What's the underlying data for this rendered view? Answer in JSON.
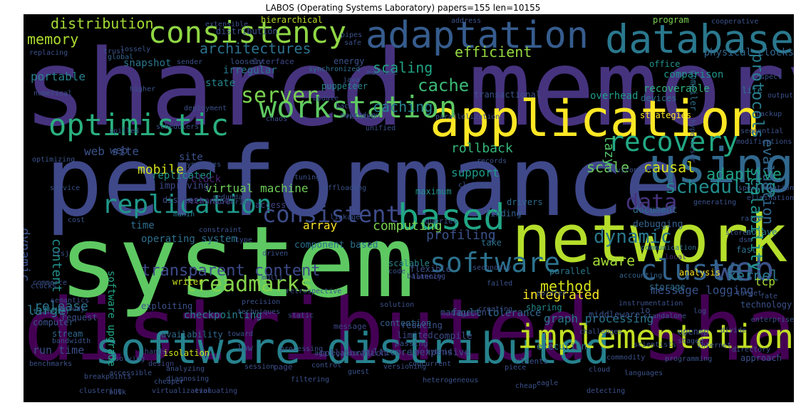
{
  "title": "LABOS (Operating Systems Laboratory) papers=155 len=10155",
  "words": [
    {
      "text": "shared memory",
      "color": "#46337e"
    },
    {
      "text": "performance",
      "color": "#3f4889"
    },
    {
      "text": "distributed shared",
      "color": "#440154"
    },
    {
      "text": "system",
      "color": "#5ec962"
    },
    {
      "text": "network",
      "color": "#b5de2b"
    },
    {
      "text": "application",
      "color": "#fde725"
    },
    {
      "text": "database",
      "color": "#2a788e"
    },
    {
      "text": "adaptation",
      "color": "#365c8d"
    },
    {
      "text": "consistency",
      "color": "#8fd744"
    },
    {
      "text": "using",
      "color": "#31688e"
    },
    {
      "text": "software distributed",
      "color": "#26828e"
    },
    {
      "text": "implementation",
      "color": "#c2df23"
    },
    {
      "text": "workstation",
      "color": "#5ec962"
    },
    {
      "text": "optimistic",
      "color": "#2ab07f"
    },
    {
      "text": "based",
      "color": "#21a685"
    },
    {
      "text": "server",
      "color": "#7ad151"
    },
    {
      "text": "web",
      "color": "#3b528b"
    },
    {
      "text": "cluster",
      "color": "#33638d"
    },
    {
      "text": "replication",
      "color": "#1f988b"
    },
    {
      "text": "recovery",
      "color": "#22a884"
    },
    {
      "text": "consistent",
      "color": "#3e4c8a"
    },
    {
      "text": "software",
      "color": "#2c728e"
    },
    {
      "text": "treadmarks",
      "color": "#84d44b"
    },
    {
      "text": "data",
      "color": "#46327e"
    },
    {
      "text": "scheduling",
      "color": "#228c8d"
    },
    {
      "text": "distribution",
      "color": "#a5db36"
    },
    {
      "text": "memory",
      "color": "#addc30"
    },
    {
      "text": "architectures",
      "color": "#2c728e"
    },
    {
      "text": "efficient",
      "color": "#95d840"
    },
    {
      "text": "protocols",
      "color": "#287d8e"
    },
    {
      "text": "cache",
      "color": "#3bbb75"
    },
    {
      "text": "scaling",
      "color": "#20a386"
    },
    {
      "text": "evaluation",
      "color": "#31688e"
    },
    {
      "text": "adaptive",
      "color": "#1fa187"
    },
    {
      "text": "caching",
      "color": "#26828e"
    },
    {
      "text": "lazy",
      "color": "#52c569"
    },
    {
      "text": "causal",
      "color": "#d8e219"
    },
    {
      "text": "scalability",
      "color": "#1f968b"
    },
    {
      "text": "rollback",
      "color": "#35b779"
    },
    {
      "text": "mobile",
      "color": "#d0e11c"
    },
    {
      "text": "web site",
      "color": "#3b528b"
    },
    {
      "text": "content",
      "color": "#21918c"
    },
    {
      "text": "dynamic",
      "color": "#3a548c"
    },
    {
      "text": "dynamic",
      "color": "#2a788e"
    },
    {
      "text": "scale",
      "color": "#6ccd5a"
    },
    {
      "text": "support",
      "color": "#1e9b8a"
    },
    {
      "text": "computing",
      "color": "#7ad151"
    },
    {
      "text": "profiling",
      "color": "#3b528b"
    },
    {
      "text": "kernel",
      "color": "#2a788e"
    },
    {
      "text": "transparent content",
      "color": "#3e4a89"
    },
    {
      "text": "aware",
      "color": "#a2da37"
    },
    {
      "text": "method",
      "color": "#d5e21a"
    },
    {
      "text": "integrated",
      "color": "#fde725"
    },
    {
      "text": "release",
      "color": "#2c738e"
    },
    {
      "text": "graph processing",
      "color": "#2a768e"
    },
    {
      "text": "message logging",
      "color": "#3a548c"
    },
    {
      "text": "fault tolerance",
      "color": "#31688e"
    },
    {
      "text": "checkpointing",
      "color": "#277f8e"
    },
    {
      "text": "run time",
      "color": "#3d4d8a"
    },
    {
      "text": "operating system",
      "color": "#2d708e"
    },
    {
      "text": "component based",
      "color": "#2c718e"
    },
    {
      "text": "software upgrade",
      "color": "#22a884"
    },
    {
      "text": "virtual machine",
      "color": "#6ece58"
    },
    {
      "text": "physical clocks",
      "color": "#31688e"
    },
    {
      "text": "replicated",
      "color": "#21918c"
    },
    {
      "text": "improving",
      "color": "#3e4a89"
    },
    {
      "text": "time",
      "color": "#2e6e8e"
    },
    {
      "text": "irregular",
      "color": "#2a778e"
    },
    {
      "text": "state",
      "color": "#24868e"
    },
    {
      "text": "portable",
      "color": "#27808e"
    },
    {
      "text": "snapshot",
      "color": "#2a768e"
    },
    {
      "text": "overhead",
      "color": "#1e9c89"
    },
    {
      "text": "comparison",
      "color": "#1f948c"
    },
    {
      "text": "recoverable",
      "color": "#2db27d"
    },
    {
      "text": "energy",
      "color": "#3b528b"
    },
    {
      "text": "puppeteer",
      "color": "#25848e"
    },
    {
      "text": "office",
      "color": "#20928c"
    },
    {
      "text": "program",
      "color": "#7ad151"
    },
    {
      "text": "hierarchical",
      "color": "#b8de29"
    },
    {
      "text": "large",
      "color": "#2a788e"
    },
    {
      "text": "analysis",
      "color": "#fde725"
    },
    {
      "text": "storage",
      "color": "#2e6e8e"
    },
    {
      "text": "tcp",
      "color": "#a8db34"
    },
    {
      "text": "diskless",
      "color": "#3e4989"
    },
    {
      "text": "clock",
      "color": "#482475"
    },
    {
      "text": "mechanism",
      "color": "#46307e"
    },
    {
      "text": "document",
      "color": "#2e6d8e"
    },
    {
      "text": "debugging",
      "color": "#33638d"
    },
    {
      "text": "finding",
      "color": "#34618d"
    },
    {
      "text": "drivers",
      "color": "#2f6b8e"
    },
    {
      "text": "array",
      "color": "#fde725"
    },
    {
      "text": "access",
      "color": "#414487"
    },
    {
      "text": "parallel",
      "color": "#2a778e"
    },
    {
      "text": "scalable",
      "color": "#25858e"
    },
    {
      "text": "flexible",
      "color": "#3b528b"
    },
    {
      "text": "sharing",
      "color": "#24878e"
    },
    {
      "text": "exploiting",
      "color": "#3b528b"
    },
    {
      "text": "management",
      "color": "#3a548c"
    },
    {
      "text": "limited",
      "color": "#3f4788"
    },
    {
      "text": "compile",
      "color": "#3e4c8a"
    },
    {
      "text": "execution",
      "color": "#2a778e"
    },
    {
      "text": "multicore",
      "color": "#39558c"
    },
    {
      "text": "inexpensive",
      "color": "#3e4a89"
    },
    {
      "text": "collaboration",
      "color": "#443983"
    },
    {
      "text": "approach",
      "color": "#3b528b"
    },
    {
      "text": "distribution",
      "color": "#3b528b"
    },
    {
      "text": "lite",
      "color": "#2a788e"
    },
    {
      "text": "devices",
      "color": "#2c728e"
    },
    {
      "text": "compiler",
      "color": "#2e6e8e"
    },
    {
      "text": "strategies",
      "color": "#fde725"
    },
    {
      "text": "maximum",
      "color": "#21918c"
    },
    {
      "text": "queries",
      "color": "#3d4e8a"
    },
    {
      "text": "isolation",
      "color": "#d0e11c"
    },
    {
      "text": "java",
      "color": "#3b528b"
    },
    {
      "text": "web",
      "color": "#3b528b"
    },
    {
      "text": "low",
      "color": "#3a548c"
    },
    {
      "text": "communication",
      "color": "#2e6e8e"
    },
    {
      "text": "local",
      "color": "#472c7a"
    },
    {
      "text": "take",
      "color": "#2c718e"
    },
    {
      "text": "site",
      "color": "#3b528b"
    },
    {
      "text": "transfer",
      "color": "#2a788e"
    },
    {
      "text": "computer",
      "color": "#3a548c"
    },
    {
      "text": "request",
      "color": "#3b528b"
    },
    {
      "text": "stream",
      "color": "#30678e"
    },
    {
      "text": "writer",
      "color": "#c8e020"
    },
    {
      "text": "openmp",
      "color": "#3a548c"
    },
    {
      "text": "dsm",
      "color": "#3b528b"
    },
    {
      "text": "global",
      "color": "#32658e"
    },
    {
      "text": "lossely",
      "color": "#3a548c"
    },
    {
      "text": "loosely",
      "color": "#3a548c"
    },
    {
      "text": "interface",
      "color": "#3e4989"
    },
    {
      "text": "synchronized",
      "color": "#2e6e8e"
    },
    {
      "text": "middleware",
      "color": "#3a548c"
    },
    {
      "text": "io",
      "color": "#3b528b"
    },
    {
      "text": "fast",
      "color": "#2c718e"
    },
    {
      "text": "technology",
      "color": "#3b528b"
    },
    {
      "text": "commerce",
      "color": "#3b528b"
    },
    {
      "text": "semantics",
      "color": "#3e4c8a"
    },
    {
      "text": "hands",
      "color": "#3e4a89"
    },
    {
      "text": "availability",
      "color": "#31688e"
    },
    {
      "text": "reducing",
      "color": "#3b528b"
    },
    {
      "text": "driven",
      "color": "#3a548c"
    },
    {
      "text": "accounting",
      "color": "#33638d"
    },
    {
      "text": "nojave",
      "color": "#2a788e"
    },
    {
      "text": "mapreduce",
      "color": "#3b528b"
    },
    {
      "text": "balancing",
      "color": "#3d4e8a"
    },
    {
      "text": "hybrid",
      "color": "#3a548c"
    },
    {
      "text": "clients",
      "color": "#3b528b"
    },
    {
      "text": "latency",
      "color": "#3e4a89"
    },
    {
      "text": "clustering",
      "color": "#3b528b"
    },
    {
      "text": "bulk",
      "color": "#3b528b"
    },
    {
      "text": "virtualization",
      "color": "#3b528b"
    },
    {
      "text": "evaluating",
      "color": "#3e4c8a"
    },
    {
      "text": "page",
      "color": "#3e4989"
    },
    {
      "text": "message",
      "color": "#3e4a89"
    },
    {
      "text": "passing",
      "color": "#3b528b"
    },
    {
      "text": "contention",
      "color": "#33638d"
    },
    {
      "text": "toward",
      "color": "#3b528b"
    },
    {
      "text": "design",
      "color": "#3e4a89"
    },
    {
      "text": "cheaper",
      "color": "#3b528b"
    },
    {
      "text": "diagnosing",
      "color": "#3b528b"
    },
    {
      "text": "benchmarks",
      "color": "#3b528b"
    },
    {
      "text": "optimizing",
      "color": "#3a548c"
    },
    {
      "text": "transactional",
      "color": "#3b528b"
    },
    {
      "text": "cooperative",
      "color": "#3b528b"
    },
    {
      "text": "extensible",
      "color": "#3b528b"
    },
    {
      "text": "hypervisor",
      "color": "#3b528b"
    },
    {
      "text": "aspect",
      "color": "#3b528b"
    },
    {
      "text": "service",
      "color": "#3b528b"
    },
    {
      "text": "redundant",
      "color": "#3b528b"
    },
    {
      "text": "deployment",
      "color": "#3b528b"
    },
    {
      "text": "chaos",
      "color": "#3b528b"
    },
    {
      "text": "munin",
      "color": "#2a788e"
    },
    {
      "text": "constraint",
      "color": "#3b528b"
    },
    {
      "text": "update",
      "color": "#3e4989"
    },
    {
      "text": "back",
      "color": "#3b528b"
    },
    {
      "text": "related",
      "color": "#3b528b"
    },
    {
      "text": "unified",
      "color": "#3b528b"
    },
    {
      "text": "parallelization",
      "color": "#3b528b"
    },
    {
      "text": "environment",
      "color": "#3b528b"
    },
    {
      "text": "tuning",
      "color": "#3b528b"
    },
    {
      "text": "offloading",
      "color": "#3b528b"
    },
    {
      "text": "linkage",
      "color": "#3b528b"
    },
    {
      "text": "languages",
      "color": "#3b528b"
    },
    {
      "text": "code",
      "color": "#3b528b"
    },
    {
      "text": "secondary",
      "color": "#3b528b"
    },
    {
      "text": "retrospective",
      "color": "#3b528b"
    },
    {
      "text": "precision",
      "color": "#3b528b"
    },
    {
      "text": "techniques",
      "color": "#3b528b"
    },
    {
      "text": "solution",
      "color": "#3b528b"
    },
    {
      "text": "target",
      "color": "#3b528b"
    },
    {
      "text": "challenges",
      "color": "#3b528b"
    },
    {
      "text": "commodity",
      "color": "#3b528b"
    },
    {
      "text": "scientists",
      "color": "#3b528b"
    },
    {
      "text": "programming",
      "color": "#3b528b"
    },
    {
      "text": "enterprise",
      "color": "#3b528b"
    },
    {
      "text": "directory",
      "color": "#3b528b"
    },
    {
      "text": "detecting",
      "color": "#3b528b"
    },
    {
      "text": "cheap",
      "color": "#3b528b"
    },
    {
      "text": "eagle",
      "color": "#3b528b"
    },
    {
      "text": "piece",
      "color": "#3b528b"
    },
    {
      "text": "cloud",
      "color": "#3b528b"
    },
    {
      "text": "staged",
      "color": "#3b528b"
    },
    {
      "text": "pointer",
      "color": "#3b528b"
    },
    {
      "text": "instrumentation",
      "color": "#3b528b"
    },
    {
      "text": "failed",
      "color": "#3b528b"
    },
    {
      "text": "creating",
      "color": "#3b528b"
    },
    {
      "text": "standalone",
      "color": "#3b528b"
    },
    {
      "text": "divide",
      "color": "#3b528b"
    },
    {
      "text": "internet",
      "color": "#3b528b"
    },
    {
      "text": "log",
      "color": "#3b528b"
    },
    {
      "text": "fate",
      "color": "#3b528b"
    },
    {
      "text": "stores",
      "color": "#3b528b"
    },
    {
      "text": "raido",
      "color": "#3b528b"
    },
    {
      "text": "elimination",
      "color": "#3b528b"
    },
    {
      "text": "generating",
      "color": "#3b528b"
    },
    {
      "text": "specification",
      "color": "#3b528b"
    },
    {
      "text": "modifications",
      "color": "#3b528b"
    },
    {
      "text": "backup",
      "color": "#3b528b"
    },
    {
      "text": "sequential",
      "color": "#3b528b"
    },
    {
      "text": "address",
      "color": "#3b528b"
    },
    {
      "text": "output",
      "color": "#3b528b"
    },
    {
      "text": "safe",
      "color": "#3b528b"
    },
    {
      "text": "sender",
      "color": "#3b528b"
    },
    {
      "text": "replacing",
      "color": "#3b528b"
    },
    {
      "text": "numerical",
      "color": "#3b528b"
    },
    {
      "text": "spilled",
      "color": "#3b528b"
    },
    {
      "text": "cost",
      "color": "#3b528b"
    },
    {
      "text": "rtsj",
      "color": "#3b528b"
    },
    {
      "text": "study",
      "color": "#3b528b"
    },
    {
      "text": "closing",
      "color": "#3b528b"
    },
    {
      "text": "records",
      "color": "#3b528b"
    },
    {
      "text": "clocks",
      "color": "#3b528b"
    },
    {
      "text": "bandwidth",
      "color": "#3b528b"
    },
    {
      "text": "breakpoints",
      "color": "#3b528b"
    },
    {
      "text": "accessible",
      "color": "#3b528b"
    },
    {
      "text": "analyzing",
      "color": "#3b528b"
    },
    {
      "text": "session",
      "color": "#3b528b"
    },
    {
      "text": "filtering",
      "color": "#3b528b"
    },
    {
      "text": "control",
      "color": "#3b528b"
    },
    {
      "text": "guest",
      "color": "#3b528b"
    },
    {
      "text": "versioning",
      "color": "#3b528b"
    },
    {
      "text": "concurrent",
      "color": "#3b528b"
    },
    {
      "text": "processing",
      "color": "#3b528b"
    },
    {
      "text": "solving",
      "color": "#3b528b"
    },
    {
      "text": "heterogeneous",
      "color": "#3b528b"
    },
    {
      "text": "trust",
      "color": "#3b528b"
    },
    {
      "text": "higher",
      "color": "#3b528b"
    },
    {
      "text": "schedulers",
      "color": "#3b528b"
    },
    {
      "text": "synergies",
      "color": "#3b528b"
    },
    {
      "text": "reordering",
      "color": "#3b528b"
    },
    {
      "text": "type",
      "color": "#3b528b"
    },
    {
      "text": "multi",
      "color": "#3b528b"
    },
    {
      "text": "static",
      "color": "#3b528b"
    },
    {
      "text": "aggregation",
      "color": "#3b528b"
    },
    {
      "text": "pipes",
      "color": "#3b528b"
    },
    {
      "text": "machine",
      "color": "#3b528b"
    }
  ]
}
